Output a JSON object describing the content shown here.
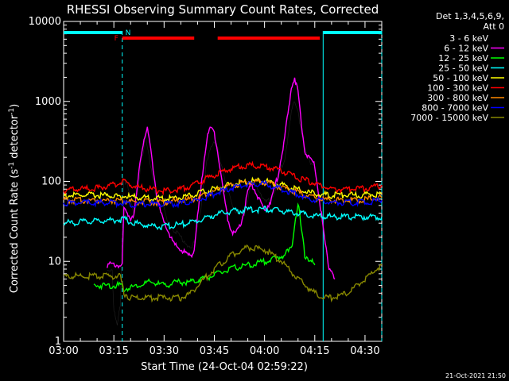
{
  "chart_data": {
    "type": "line",
    "title": "RHESSI Observing Summary Count Rates, Corrected",
    "xlabel": "Start Time (24-Oct-04 02:59:22)",
    "ylabel_parts": [
      "Corrected Count Rate (s",
      "-1",
      " detector",
      "-1",
      ")"
    ],
    "footer_date": "21-Oct-2021 21:50",
    "legend_header": [
      "Det 1,3,4,5,6,9,",
      "Att 0"
    ],
    "x_ticks": [
      "03:00",
      "03:15",
      "03:30",
      "03:45",
      "04:00",
      "04:15",
      "04:30"
    ],
    "y_ticks": [
      "1",
      "10",
      "100",
      "1000",
      "10000"
    ],
    "x_unit": "minutes after 03:00",
    "xlim": [
      0,
      95
    ],
    "ylim": [
      1,
      10000
    ],
    "y_scale": "log",
    "flags": {
      "N_label": "N",
      "F_label": "F",
      "night_segments": [
        [
          0,
          17.5
        ],
        [
          77.5,
          95
        ]
      ],
      "flare_segments": [
        [
          17.5,
          39
        ],
        [
          46,
          76.5
        ]
      ],
      "vertical_boundaries": [
        17.5,
        77.5,
        95
      ]
    },
    "series": [
      {
        "name": "3 - 6 keV",
        "color": "#000000",
        "points": [
          [
            13,
            8
          ],
          [
            14.5,
            8
          ],
          [
            15,
            2.5
          ],
          [
            16,
            1.5
          ],
          [
            17,
            3
          ],
          [
            17.5,
            40
          ],
          [
            18,
            110
          ],
          [
            19,
            90
          ],
          [
            20,
            55
          ],
          [
            21,
            40
          ],
          [
            22,
            60
          ],
          [
            23,
            150
          ],
          [
            24,
            250
          ],
          [
            24.5,
            400
          ],
          [
            25,
            280
          ],
          [
            26,
            160
          ],
          [
            27,
            80
          ],
          [
            28,
            50
          ],
          [
            29,
            60
          ],
          [
            30,
            45
          ],
          [
            31,
            30
          ],
          [
            32,
            27
          ],
          [
            33,
            25
          ],
          [
            34,
            22
          ],
          [
            35,
            20
          ],
          [
            36,
            18
          ],
          [
            37,
            16
          ],
          [
            38,
            14
          ],
          [
            39,
            17
          ],
          [
            40,
            30
          ],
          [
            41,
            45
          ],
          [
            42,
            100
          ],
          [
            43,
            200
          ],
          [
            44,
            280
          ],
          [
            45,
            300
          ],
          [
            46,
            250
          ],
          [
            47,
            180
          ],
          [
            48,
            120
          ],
          [
            49,
            80
          ],
          [
            50,
            55
          ],
          [
            51,
            45
          ],
          [
            52,
            42
          ],
          [
            53,
            38
          ],
          [
            54,
            40
          ],
          [
            55,
            60
          ],
          [
            56,
            100
          ],
          [
            57,
            95
          ],
          [
            58,
            85
          ],
          [
            59,
            70
          ],
          [
            60,
            55
          ],
          [
            61,
            55
          ],
          [
            62,
            60
          ],
          [
            63,
            75
          ],
          [
            64,
            100
          ],
          [
            65,
            150
          ],
          [
            66,
            200
          ],
          [
            67,
            350
          ],
          [
            68,
            700
          ],
          [
            69,
            1000
          ],
          [
            70,
            800
          ],
          [
            71,
            400
          ],
          [
            72,
            250
          ],
          [
            73,
            200
          ],
          [
            74,
            170
          ],
          [
            75,
            160
          ]
        ]
      },
      {
        "name": "6 - 12 keV",
        "color": "#ff00ff",
        "points": [
          [
            13,
            9
          ],
          [
            17.5,
            9
          ],
          [
            18,
            45
          ],
          [
            19,
            40
          ],
          [
            20,
            35
          ],
          [
            21,
            40
          ],
          [
            22,
            80
          ],
          [
            23,
            200
          ],
          [
            24,
            350
          ],
          [
            25,
            440
          ],
          [
            26,
            250
          ],
          [
            27,
            120
          ],
          [
            28,
            60
          ],
          [
            29,
            40
          ],
          [
            30,
            30
          ],
          [
            31,
            25
          ],
          [
            32,
            20
          ],
          [
            33,
            16
          ],
          [
            34,
            15
          ],
          [
            35,
            14
          ],
          [
            36,
            13
          ],
          [
            37,
            12
          ],
          [
            38,
            12
          ],
          [
            39,
            14
          ],
          [
            40,
            35
          ],
          [
            41,
            80
          ],
          [
            42,
            200
          ],
          [
            43,
            400
          ],
          [
            44,
            460
          ],
          [
            45,
            400
          ],
          [
            46,
            250
          ],
          [
            47,
            120
          ],
          [
            48,
            60
          ],
          [
            49,
            35
          ],
          [
            50,
            25
          ],
          [
            51,
            22
          ],
          [
            52,
            24
          ],
          [
            53,
            30
          ],
          [
            54,
            45
          ],
          [
            55,
            75
          ],
          [
            56,
            90
          ],
          [
            57,
            80
          ],
          [
            58,
            65
          ],
          [
            59,
            50
          ],
          [
            60,
            45
          ],
          [
            61,
            50
          ],
          [
            62,
            60
          ],
          [
            63,
            80
          ],
          [
            64,
            120
          ],
          [
            65,
            200
          ],
          [
            66,
            350
          ],
          [
            67,
            700
          ],
          [
            68,
            1500
          ],
          [
            69,
            2000
          ],
          [
            70,
            1300
          ],
          [
            71,
            500
          ],
          [
            72,
            250
          ],
          [
            73,
            200
          ],
          [
            74,
            180
          ],
          [
            75,
            160
          ],
          [
            79,
            9
          ],
          [
            80,
            8
          ],
          [
            81,
            6
          ]
        ]
      },
      {
        "name": "12 - 25 keV",
        "color": "#00ff00",
        "points": [
          [
            9,
            5
          ],
          [
            17,
            5
          ],
          [
            18,
            4.5
          ],
          [
            22,
            5
          ],
          [
            26,
            5.5
          ],
          [
            30,
            5
          ],
          [
            34,
            5.5
          ],
          [
            38,
            5.5
          ],
          [
            41,
            6
          ],
          [
            44,
            6.5
          ],
          [
            48,
            7.5
          ],
          [
            52,
            8.5
          ],
          [
            56,
            9
          ],
          [
            60,
            10
          ],
          [
            64,
            11
          ],
          [
            68,
            14
          ],
          [
            69,
            30
          ],
          [
            70,
            55
          ],
          [
            71,
            25
          ],
          [
            72,
            12
          ],
          [
            74,
            10
          ],
          [
            75,
            9
          ]
        ]
      },
      {
        "name": "25 - 50 keV",
        "color": "#00ffff",
        "points": [
          [
            0,
            30
          ],
          [
            5,
            31
          ],
          [
            10,
            32
          ],
          [
            15,
            33
          ],
          [
            17,
            33
          ],
          [
            18,
            34
          ],
          [
            20,
            31
          ],
          [
            25,
            28
          ],
          [
            30,
            27
          ],
          [
            35,
            29
          ],
          [
            40,
            32
          ],
          [
            45,
            38
          ],
          [
            50,
            42
          ],
          [
            55,
            44
          ],
          [
            60,
            45
          ],
          [
            65,
            43
          ],
          [
            70,
            40
          ],
          [
            75,
            37
          ],
          [
            80,
            36
          ],
          [
            85,
            36
          ],
          [
            90,
            36
          ],
          [
            95,
            36
          ]
        ]
      },
      {
        "name": "50 - 100 keV",
        "color": "#ffff00",
        "points": [
          [
            0,
            66
          ],
          [
            5,
            67
          ],
          [
            10,
            67
          ],
          [
            15,
            66
          ],
          [
            20,
            64
          ],
          [
            25,
            62
          ],
          [
            30,
            61
          ],
          [
            35,
            63
          ],
          [
            40,
            70
          ],
          [
            45,
            80
          ],
          [
            50,
            92
          ],
          [
            55,
            100
          ],
          [
            60,
            100
          ],
          [
            65,
            90
          ],
          [
            70,
            78
          ],
          [
            75,
            70
          ],
          [
            80,
            67
          ],
          [
            85,
            67
          ],
          [
            90,
            68
          ],
          [
            95,
            70
          ]
        ]
      },
      {
        "name": "100 - 300 keV",
        "color": "#ff0000",
        "points": [
          [
            0,
            78
          ],
          [
            5,
            80
          ],
          [
            10,
            82
          ],
          [
            15,
            90
          ],
          [
            18,
            100
          ],
          [
            20,
            90
          ],
          [
            25,
            80
          ],
          [
            30,
            76
          ],
          [
            35,
            80
          ],
          [
            40,
            95
          ],
          [
            45,
            120
          ],
          [
            50,
            145
          ],
          [
            55,
            160
          ],
          [
            60,
            155
          ],
          [
            65,
            135
          ],
          [
            70,
            110
          ],
          [
            75,
            95
          ],
          [
            80,
            80
          ],
          [
            85,
            80
          ],
          [
            90,
            82
          ],
          [
            95,
            90
          ]
        ]
      },
      {
        "name": "300 - 800 keV",
        "color": "#ff8800",
        "points": [
          [
            0,
            58
          ],
          [
            5,
            58
          ],
          [
            10,
            58
          ],
          [
            15,
            58
          ],
          [
            20,
            56
          ],
          [
            25,
            55
          ],
          [
            30,
            55
          ],
          [
            35,
            57
          ],
          [
            40,
            62
          ],
          [
            45,
            75
          ],
          [
            50,
            88
          ],
          [
            55,
            98
          ],
          [
            60,
            98
          ],
          [
            65,
            85
          ],
          [
            70,
            72
          ],
          [
            75,
            62
          ],
          [
            80,
            58
          ],
          [
            85,
            58
          ],
          [
            90,
            59
          ],
          [
            95,
            62
          ]
        ]
      },
      {
        "name": "800 - 7000 keV",
        "color": "#0000ff",
        "points": [
          [
            0,
            54
          ],
          [
            5,
            54
          ],
          [
            10,
            54
          ],
          [
            15,
            54
          ],
          [
            20,
            52
          ],
          [
            25,
            52
          ],
          [
            30,
            52
          ],
          [
            35,
            53
          ],
          [
            40,
            58
          ],
          [
            45,
            70
          ],
          [
            50,
            82
          ],
          [
            55,
            92
          ],
          [
            60,
            93
          ],
          [
            65,
            80
          ],
          [
            70,
            68
          ],
          [
            75,
            58
          ],
          [
            80,
            54
          ],
          [
            85,
            54
          ],
          [
            90,
            55
          ],
          [
            95,
            58
          ]
        ]
      },
      {
        "name": "7000 - 15000 keV",
        "color": "#888800",
        "points": [
          [
            0,
            6.5
          ],
          [
            5,
            6.5
          ],
          [
            10,
            6.5
          ],
          [
            15,
            6.5
          ],
          [
            17,
            6.5
          ],
          [
            18,
            4
          ],
          [
            20,
            3.5
          ],
          [
            25,
            3.5
          ],
          [
            30,
            3.5
          ],
          [
            35,
            3.5
          ],
          [
            38,
            4
          ],
          [
            40,
            5
          ],
          [
            42,
            6
          ],
          [
            45,
            8
          ],
          [
            50,
            12
          ],
          [
            55,
            15
          ],
          [
            60,
            14
          ],
          [
            65,
            10
          ],
          [
            70,
            6
          ],
          [
            75,
            4
          ],
          [
            77,
            3.5
          ],
          [
            80,
            3.5
          ],
          [
            85,
            4
          ],
          [
            90,
            6
          ],
          [
            95,
            9
          ]
        ]
      }
    ]
  }
}
